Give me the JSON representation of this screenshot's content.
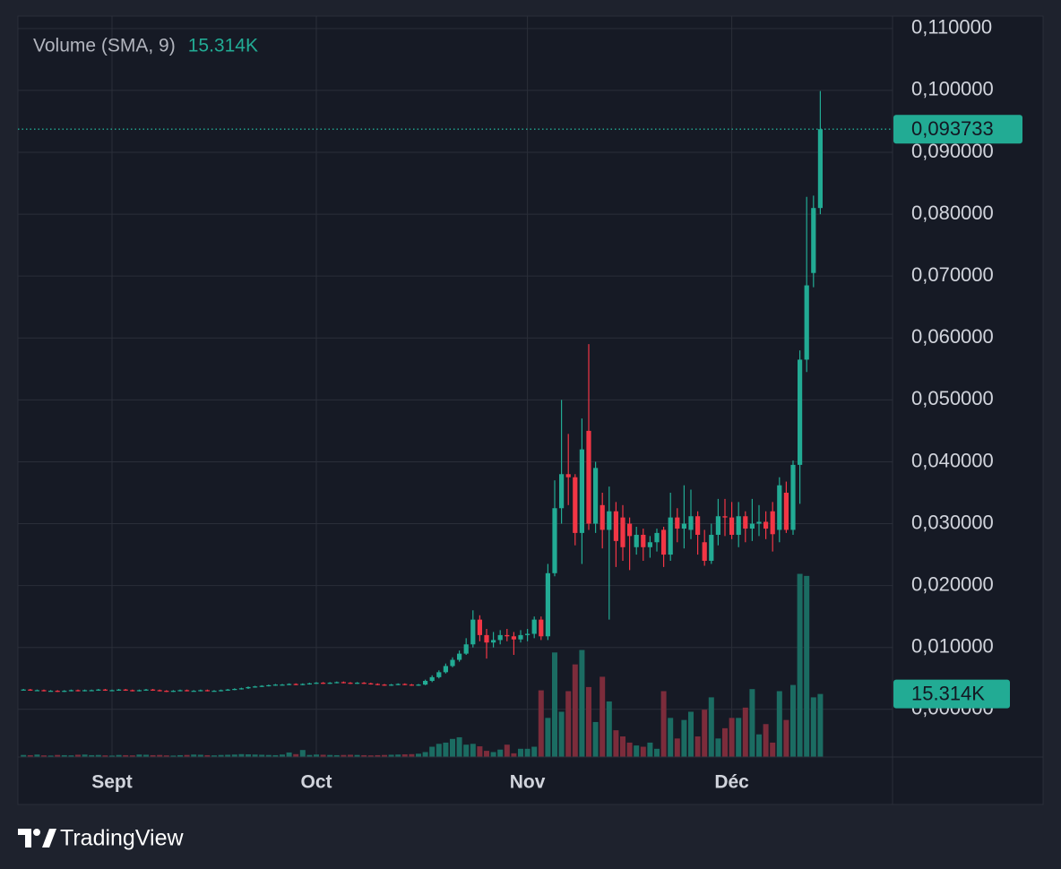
{
  "chart_data": {
    "type": "candlestick",
    "categories": [
      null,
      null,
      null,
      null,
      null,
      null,
      null,
      null,
      null,
      null,
      null,
      null,
      null,
      "Sept",
      null,
      null,
      null,
      null,
      null,
      null,
      null,
      null,
      null,
      null,
      null,
      null,
      null,
      null,
      null,
      null,
      null,
      null,
      null,
      null,
      null,
      null,
      null,
      null,
      null,
      null,
      null,
      null,
      null,
      "Oct",
      null,
      null,
      null,
      null,
      null,
      null,
      null,
      null,
      null,
      null,
      null,
      null,
      null,
      null,
      null,
      null,
      null,
      null,
      null,
      null,
      null,
      null,
      null,
      null,
      null,
      null,
      null,
      null,
      null,
      null,
      "Nov",
      null,
      null,
      null,
      null,
      null,
      null,
      null,
      null,
      null,
      null,
      null,
      null,
      null,
      null,
      null,
      null,
      null,
      null,
      null,
      null,
      null,
      null,
      null,
      null,
      null,
      null,
      null,
      null,
      null,
      "Déc",
      null,
      null,
      null,
      null,
      null,
      null,
      null,
      null,
      null,
      null,
      null,
      null,
      null
    ],
    "open": [
      0.0032,
      0.0032,
      0.0031,
      0.0031,
      0.003,
      0.003,
      0.0029,
      0.003,
      0.0031,
      0.003,
      0.0031,
      0.0031,
      0.0032,
      0.0031,
      0.0031,
      0.0032,
      0.0031,
      0.003,
      0.0031,
      0.0032,
      0.0031,
      0.003,
      0.0029,
      0.003,
      0.0031,
      0.003,
      0.003,
      0.0031,
      0.003,
      0.003,
      0.0031,
      0.0032,
      0.0033,
      0.0034,
      0.0036,
      0.0037,
      0.0038,
      0.0039,
      0.004,
      0.004,
      0.0041,
      0.004,
      0.0041,
      0.0042,
      0.0043,
      0.0042,
      0.0043,
      0.0044,
      0.0043,
      0.0042,
      0.0043,
      0.0042,
      0.0041,
      0.004,
      0.0039,
      0.004,
      0.0041,
      0.004,
      0.0039,
      0.004,
      0.0046,
      0.0052,
      0.006,
      0.007,
      0.008,
      0.009,
      0.0105,
      0.0145,
      0.012,
      0.0108,
      0.0112,
      0.012,
      0.0118,
      0.0113,
      0.012,
      0.0122,
      0.0145,
      0.0118,
      0.022,
      0.0325,
      0.038,
      0.0375,
      0.0285,
      0.045,
      0.03,
      0.033,
      0.029,
      0.032,
      0.031,
      0.03,
      0.0262,
      0.0282,
      0.0262,
      0.027,
      0.029,
      0.025,
      0.031,
      0.0292,
      0.029,
      0.0312,
      0.027,
      0.024,
      0.0282,
      0.0312,
      0.031,
      0.0282,
      0.0312,
      0.0292,
      0.03,
      0.0303,
      0.032,
      0.029,
      0.035,
      0.029,
      0.0395,
      0.0565,
      0.0705,
      0.081
    ],
    "high": [
      0.0033,
      0.0033,
      0.0032,
      0.0032,
      0.0031,
      0.0031,
      0.0031,
      0.0032,
      0.0032,
      0.0032,
      0.0032,
      0.0033,
      0.0033,
      0.0032,
      0.0033,
      0.0033,
      0.0032,
      0.0032,
      0.0033,
      0.0033,
      0.0032,
      0.0031,
      0.0031,
      0.0032,
      0.0032,
      0.0031,
      0.0032,
      0.0032,
      0.0031,
      0.0032,
      0.0033,
      0.0034,
      0.0035,
      0.0037,
      0.0038,
      0.0039,
      0.004,
      0.0041,
      0.0041,
      0.0042,
      0.0042,
      0.0042,
      0.0043,
      0.0044,
      0.0044,
      0.0044,
      0.0045,
      0.0045,
      0.0044,
      0.0044,
      0.0044,
      0.0043,
      0.0042,
      0.0041,
      0.0041,
      0.0042,
      0.0042,
      0.0041,
      0.0041,
      0.0048,
      0.0055,
      0.0063,
      0.0074,
      0.0084,
      0.0095,
      0.0115,
      0.016,
      0.0152,
      0.013,
      0.0125,
      0.0128,
      0.013,
      0.0125,
      0.0128,
      0.013,
      0.015,
      0.015,
      0.0235,
      0.037,
      0.05,
      0.0445,
      0.038,
      0.047,
      0.059,
      0.04,
      0.035,
      0.036,
      0.0335,
      0.033,
      0.031,
      0.0295,
      0.0292,
      0.028,
      0.0292,
      0.0295,
      0.035,
      0.0325,
      0.0362,
      0.0355,
      0.032,
      0.029,
      0.03,
      0.034,
      0.034,
      0.0335,
      0.0335,
      0.032,
      0.034,
      0.033,
      0.032,
      0.0335,
      0.0375,
      0.0368,
      0.0402,
      0.058,
      0.0828,
      0.083,
      0.0999
    ],
    "low": [
      0.0031,
      0.003,
      0.003,
      0.0029,
      0.0029,
      0.0028,
      0.0028,
      0.0029,
      0.0029,
      0.0029,
      0.003,
      0.003,
      0.003,
      0.003,
      0.003,
      0.003,
      0.0029,
      0.0029,
      0.003,
      0.003,
      0.0029,
      0.0028,
      0.0028,
      0.0029,
      0.0029,
      0.0029,
      0.0029,
      0.0029,
      0.0029,
      0.0029,
      0.003,
      0.0031,
      0.0032,
      0.0033,
      0.0035,
      0.0036,
      0.0037,
      0.0038,
      0.0039,
      0.0039,
      0.0039,
      0.0039,
      0.004,
      0.0041,
      0.0041,
      0.0041,
      0.0042,
      0.0042,
      0.0041,
      0.0041,
      0.0041,
      0.004,
      0.0039,
      0.0038,
      0.0038,
      0.0039,
      0.0039,
      0.0038,
      0.0038,
      0.0039,
      0.0044,
      0.005,
      0.0058,
      0.0068,
      0.0077,
      0.0088,
      0.01,
      0.011,
      0.0082,
      0.01,
      0.0105,
      0.011,
      0.0088,
      0.0108,
      0.011,
      0.0115,
      0.0112,
      0.0112,
      0.0215,
      0.03,
      0.033,
      0.0265,
      0.0235,
      0.029,
      0.0285,
      0.026,
      0.0145,
      0.023,
      0.024,
      0.0225,
      0.025,
      0.024,
      0.0245,
      0.0255,
      0.023,
      0.024,
      0.027,
      0.026,
      0.0275,
      0.025,
      0.0232,
      0.0235,
      0.0265,
      0.028,
      0.0275,
      0.0262,
      0.027,
      0.0272,
      0.028,
      0.0275,
      0.0255,
      0.027,
      0.0285,
      0.0282,
      0.0332,
      0.0545,
      0.0682,
      0.08
    ],
    "close": [
      0.0032,
      0.0031,
      0.0031,
      0.003,
      0.003,
      0.0029,
      0.003,
      0.0031,
      0.003,
      0.0031,
      0.0031,
      0.0032,
      0.0031,
      0.0031,
      0.0032,
      0.0031,
      0.003,
      0.0031,
      0.0032,
      0.0031,
      0.003,
      0.0029,
      0.003,
      0.0031,
      0.003,
      0.003,
      0.0031,
      0.003,
      0.003,
      0.0031,
      0.0032,
      0.0033,
      0.0034,
      0.0036,
      0.0037,
      0.0038,
      0.0039,
      0.004,
      0.004,
      0.0041,
      0.004,
      0.0041,
      0.0042,
      0.0043,
      0.0042,
      0.0043,
      0.0044,
      0.0043,
      0.0042,
      0.0043,
      0.0042,
      0.0041,
      0.004,
      0.0039,
      0.004,
      0.0041,
      0.004,
      0.0039,
      0.004,
      0.0046,
      0.0052,
      0.006,
      0.007,
      0.008,
      0.009,
      0.0105,
      0.0145,
      0.012,
      0.0108,
      0.0112,
      0.012,
      0.0118,
      0.0113,
      0.012,
      0.0122,
      0.0145,
      0.0118,
      0.022,
      0.0325,
      0.038,
      0.0375,
      0.0285,
      0.042,
      0.03,
      0.039,
      0.029,
      0.032,
      0.0272,
      0.0262,
      0.028,
      0.0282,
      0.0262,
      0.027,
      0.0285,
      0.025,
      0.031,
      0.0292,
      0.03,
      0.0312,
      0.0282,
      0.024,
      0.0282,
      0.0312,
      0.031,
      0.0282,
      0.0312,
      0.0292,
      0.03,
      0.0303,
      0.0292,
      0.0283,
      0.0362,
      0.029,
      0.0395,
      0.0565,
      0.0685,
      0.081,
      0.093733
    ],
    "volume": [
      500,
      450,
      600,
      400,
      350,
      500,
      450,
      400,
      550,
      600,
      450,
      500,
      400,
      350,
      500,
      450,
      400,
      600,
      550,
      450,
      500,
      400,
      350,
      450,
      500,
      600,
      550,
      450,
      400,
      500,
      550,
      600,
      700,
      650,
      600,
      550,
      500,
      450,
      600,
      1100,
      700,
      1700,
      500,
      600,
      550,
      500,
      450,
      500,
      550,
      500,
      450,
      400,
      450,
      500,
      550,
      600,
      650,
      700,
      800,
      1200,
      2500,
      3200,
      3500,
      4400,
      4800,
      3000,
      3200,
      2600,
      1500,
      1200,
      1800,
      3000,
      900,
      2000,
      2000,
      2500,
      16200,
      9500,
      25400,
      11000,
      16000,
      22500,
      26000,
      17000,
      8500,
      19500,
      13500,
      6500,
      5000,
      3500,
      2800,
      2500,
      3500,
      2000,
      16000,
      9500,
      4500,
      9000,
      11000,
      5000,
      11500,
      14500,
      4500,
      7000,
      9500,
      9500,
      12000,
      16500,
      5500,
      8000,
      3500,
      16000,
      9000,
      17500,
      44500,
      44000,
      14500,
      15314
    ],
    "ylim": [
      -0.0077,
      0.112
    ],
    "yticks": [
      {
        "value": 0,
        "label": "0,000000"
      },
      {
        "value": 0.01,
        "label": "0,010000"
      },
      {
        "value": 0.02,
        "label": "0,020000"
      },
      {
        "value": 0.03,
        "label": "0,030000"
      },
      {
        "value": 0.04,
        "label": "0,040000"
      },
      {
        "value": 0.05,
        "label": "0,050000"
      },
      {
        "value": 0.06,
        "label": "0,060000"
      },
      {
        "value": 0.07,
        "label": "0,070000"
      },
      {
        "value": 0.08,
        "label": "0,080000"
      },
      {
        "value": 0.09,
        "label": "0,090000"
      },
      {
        "value": 0.1,
        "label": "0,100000"
      },
      {
        "value": 0.11,
        "label": "0,110000"
      }
    ],
    "volume_ylim": [
      0,
      180000
    ],
    "grid": true,
    "up_color": "#22ab94",
    "down_color": "#f23645",
    "volume_up_color": "#1b6c62",
    "volume_down_color": "#7c2c3b",
    "last_price": {
      "value": 0.093733,
      "label": "0,093733"
    },
    "indicator": {
      "name": "Volume (SMA, 9)",
      "value": {
        "value": 15314,
        "label": "15.314K"
      }
    }
  },
  "branding": "TradingView"
}
